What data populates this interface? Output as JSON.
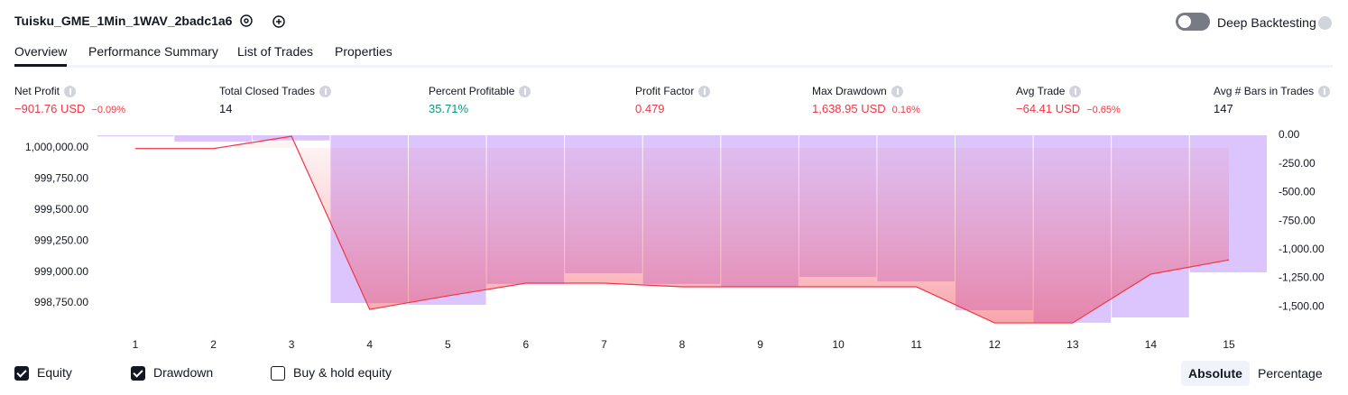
{
  "header": {
    "title": "Tuisku_GME_1Min_1WAV_2badc1a6",
    "toggle_label": "Deep Backtesting",
    "toggle_on": false
  },
  "tabs": {
    "items": [
      "Overview",
      "Performance Summary",
      "List of Trades",
      "Properties"
    ],
    "active": 0
  },
  "metrics": [
    {
      "label": "Net Profit",
      "value": "−901.76 USD",
      "secondary": "−0.09%",
      "color": "#f23645"
    },
    {
      "label": "Total Closed Trades",
      "value": "14",
      "color": "#131722"
    },
    {
      "label": "Percent Profitable",
      "value": "35.71%",
      "color": "#089981"
    },
    {
      "label": "Profit Factor",
      "value": "0.479",
      "color": "#f23645"
    },
    {
      "label": "Max Drawdown",
      "value": "1,638.95 USD",
      "secondary": "0.16%",
      "color": "#f23645"
    },
    {
      "label": "Avg Trade",
      "value": "−64.41 USD",
      "secondary": "−0.65%",
      "color": "#f23645"
    },
    {
      "label": "Avg # Bars in Trades",
      "value": "147",
      "color": "#131722"
    }
  ],
  "chart_data": {
    "type": "equity_drawdown",
    "x": [
      1,
      2,
      3,
      4,
      5,
      6,
      7,
      8,
      9,
      10,
      11,
      12,
      13,
      14,
      15
    ],
    "series": [
      {
        "name": "Equity",
        "color": "#f23645",
        "axis": "y",
        "values": [
          999995,
          999995,
          1000094,
          998699,
          998808,
          998910,
          998910,
          998881,
          998881,
          998881,
          998881,
          998590,
          998590,
          998983,
          999098
        ]
      },
      {
        "name": "Drawdown",
        "color": "#dcc5fc",
        "axis": "y2",
        "values": [
          -10,
          -55,
          -45,
          -1467,
          -1483,
          -1300,
          -1207,
          -1300,
          -1325,
          -1238,
          -1278,
          -1530,
          -1639,
          -1593,
          -1199
        ]
      }
    ],
    "ylim": [
      998576,
      1000102
    ],
    "yticks": [
      {
        "value": 1000000,
        "label": "1,000,000.00"
      },
      {
        "value": 999750,
        "label": "999,750.00"
      },
      {
        "value": 999500,
        "label": "999,500.00"
      },
      {
        "value": 999250,
        "label": "999,250.00"
      },
      {
        "value": 999000,
        "label": "999,000.00"
      },
      {
        "value": 998750,
        "label": "998,750.00"
      }
    ],
    "y2lim": [
      -1656,
      0
    ],
    "y2ticks": [
      {
        "value": 0,
        "label": "0.00"
      },
      {
        "value": -250,
        "label": "-250.00"
      },
      {
        "value": -500,
        "label": "-500.00"
      },
      {
        "value": -750,
        "label": "-750.00"
      },
      {
        "value": -1000,
        "label": "-1,000.00"
      },
      {
        "value": -1250,
        "label": "-1,250.00"
      },
      {
        "value": -1500,
        "label": "-1,500.00"
      }
    ],
    "baseline": 1000000
  },
  "legend": [
    {
      "label": "Equity",
      "checked": true
    },
    {
      "label": "Drawdown",
      "checked": true
    },
    {
      "label": "Buy & hold equity",
      "checked": false
    }
  ],
  "modes": {
    "items": [
      "Absolute",
      "Percentage"
    ],
    "active": 0
  }
}
